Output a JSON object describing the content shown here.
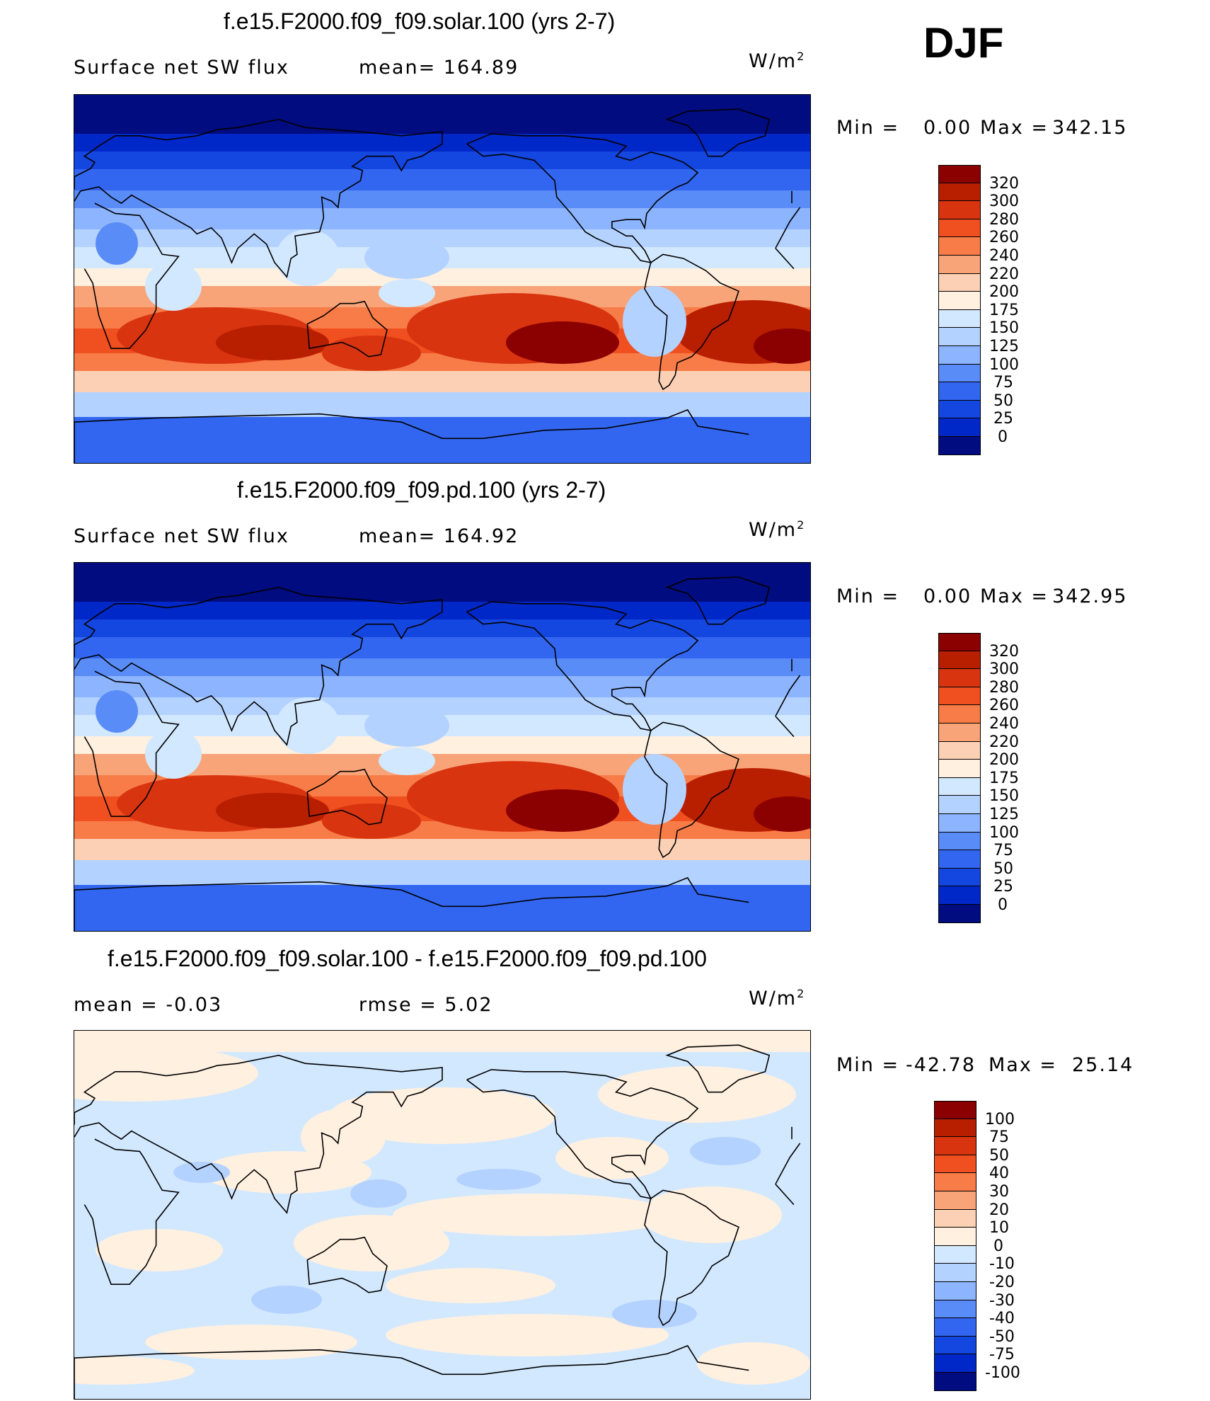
{
  "season_label": "DJF",
  "panels": [
    {
      "title": "f.e15.F2000.f09_f09.solar.100 (yrs 2-7)",
      "left_label": "Surface net SW flux",
      "mid_label": "mean= 164.89",
      "units_base": "W/m",
      "units_exp": "2",
      "min_label": "Min =",
      "min_value": "0.00",
      "max_label": "Max =",
      "max_value": "342.15",
      "field": "absolute",
      "colorbar": {
        "levels": [
          "320",
          "300",
          "280",
          "260",
          "240",
          "220",
          "200",
          "175",
          "150",
          "125",
          "100",
          "75",
          "50",
          "25",
          "0"
        ],
        "colors": [
          "#8b0000",
          "#b81e00",
          "#d83410",
          "#f05020",
          "#f87c48",
          "#f8a478",
          "#fcd0b4",
          "#fff0e0",
          "#d2e8ff",
          "#b4d2ff",
          "#8cb4ff",
          "#5a8cf8",
          "#3266f0",
          "#1446e0",
          "#0028c8",
          "#000c80"
        ]
      }
    },
    {
      "title": "f.e15.F2000.f09_f09.pd.100 (yrs 2-7)",
      "left_label": "Surface net SW flux",
      "mid_label": "mean= 164.92",
      "units_base": "W/m",
      "units_exp": "2",
      "min_label": "Min =",
      "min_value": "0.00",
      "max_label": "Max =",
      "max_value": "342.95",
      "field": "absolute",
      "colorbar": {
        "levels": [
          "320",
          "300",
          "280",
          "260",
          "240",
          "220",
          "200",
          "175",
          "150",
          "125",
          "100",
          "75",
          "50",
          "25",
          "0"
        ],
        "colors": [
          "#8b0000",
          "#b81e00",
          "#d83410",
          "#f05020",
          "#f87c48",
          "#f8a478",
          "#fcd0b4",
          "#fff0e0",
          "#d2e8ff",
          "#b4d2ff",
          "#8cb4ff",
          "#5a8cf8",
          "#3266f0",
          "#1446e0",
          "#0028c8",
          "#000c80"
        ]
      }
    },
    {
      "title": "f.e15.F2000.f09_f09.solar.100 - f.e15.F2000.f09_f09.pd.100",
      "left_label": "mean = -0.03",
      "mid_label": "rmse = 5.02",
      "units_base": "W/m",
      "units_exp": "2",
      "min_label": "Min =",
      "min_value": "-42.78",
      "max_label": "Max =",
      "max_value": "25.14",
      "field": "difference",
      "colorbar": {
        "levels": [
          "100",
          "75",
          "50",
          "40",
          "30",
          "20",
          "10",
          "0",
          "-10",
          "-20",
          "-30",
          "-40",
          "-50",
          "-75",
          "-100"
        ],
        "colors": [
          "#8b0000",
          "#b81e00",
          "#d83410",
          "#f05020",
          "#f87c48",
          "#f8a478",
          "#fcd0b4",
          "#fff0e0",
          "#d2e8ff",
          "#b4d2ff",
          "#8cb4ff",
          "#5a8cf8",
          "#3266f0",
          "#1446e0",
          "#0028c8",
          "#000c80"
        ]
      }
    }
  ]
}
